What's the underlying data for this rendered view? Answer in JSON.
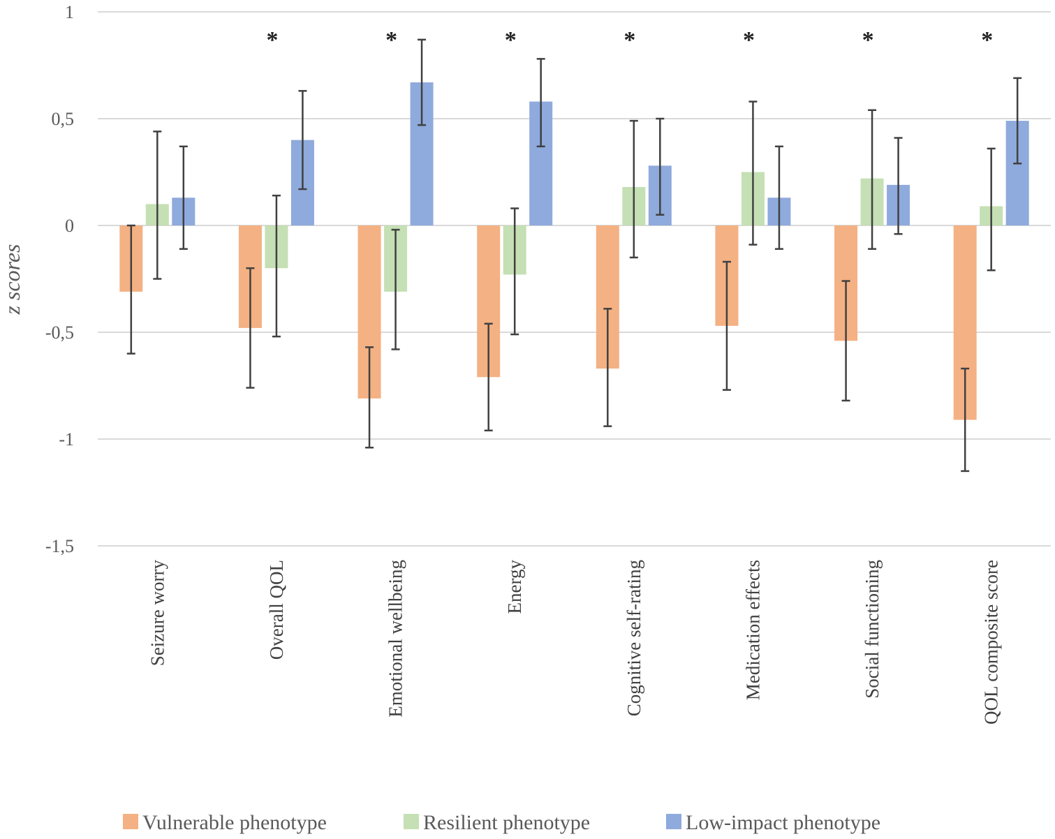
{
  "chart_data": {
    "type": "bar",
    "title": "",
    "xlabel": "",
    "ylabel": "z scores",
    "ylim": [
      -1.5,
      1
    ],
    "yticks": [
      1,
      0.5,
      0,
      -0.5,
      -1,
      -1.5
    ],
    "ytick_labels": [
      "1",
      "0,5",
      "0",
      "-0,5",
      "-1",
      "-1,5"
    ],
    "grid": true,
    "legend_position": "bottom",
    "categories": [
      "Seizure worry",
      "Overall QOL",
      "Emotional wellbeing",
      "Energy",
      "Cognitive self-rating",
      "Medication effects",
      "Social functioning",
      "QOL composite score"
    ],
    "significance": [
      "",
      "*",
      "*",
      "*",
      "*",
      "*",
      "*",
      "*"
    ],
    "series": [
      {
        "name": "Vulnerable phenotype",
        "color": "#F4B183",
        "values": [
          -0.31,
          -0.48,
          -0.81,
          -0.71,
          -0.67,
          -0.47,
          -0.54,
          -0.91
        ],
        "error_upper": [
          0.0,
          -0.2,
          -0.57,
          -0.46,
          -0.39,
          -0.17,
          -0.26,
          -0.67
        ],
        "error_lower": [
          -0.6,
          -0.76,
          -1.04,
          -0.96,
          -0.94,
          -0.77,
          -0.82,
          -1.15
        ]
      },
      {
        "name": "Resilient phenotype",
        "color": "#C5E0B4",
        "values": [
          0.1,
          -0.2,
          -0.31,
          -0.23,
          0.18,
          0.25,
          0.22,
          0.09
        ],
        "error_upper": [
          0.44,
          0.14,
          -0.02,
          0.08,
          0.49,
          0.58,
          0.54,
          0.36
        ],
        "error_lower": [
          -0.25,
          -0.52,
          -0.58,
          -0.51,
          -0.15,
          -0.09,
          -0.11,
          -0.21
        ]
      },
      {
        "name": "Low-impact phenotype",
        "color": "#8FAADC",
        "values": [
          0.13,
          0.4,
          0.67,
          0.58,
          0.28,
          0.13,
          0.19,
          0.49
        ],
        "error_upper": [
          0.37,
          0.63,
          0.87,
          0.78,
          0.5,
          0.37,
          0.41,
          0.69
        ],
        "error_lower": [
          -0.11,
          0.17,
          0.47,
          0.37,
          0.05,
          -0.11,
          -0.04,
          0.29
        ]
      }
    ]
  }
}
